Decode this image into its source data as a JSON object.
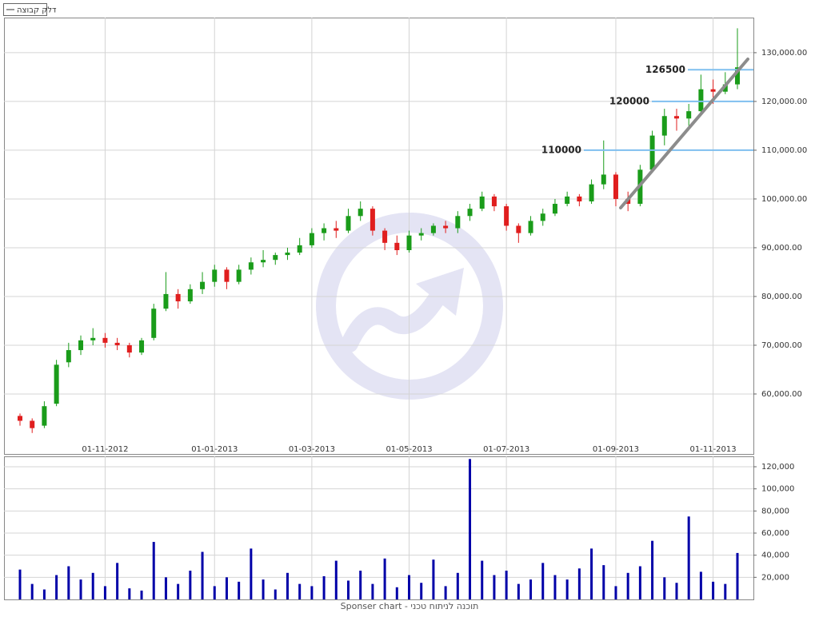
{
  "chart_data": [
    {
      "type": "candlestick",
      "series_name": "דלק קבוצה",
      "categories": [
        null,
        null,
        null,
        null,
        null,
        null,
        null,
        "01-11-2012",
        null,
        null,
        null,
        null,
        null,
        null,
        null,
        null,
        "01-01-2013",
        null,
        null,
        null,
        null,
        null,
        null,
        null,
        "01-03-2013",
        null,
        null,
        null,
        null,
        null,
        null,
        null,
        "01-05-2013",
        null,
        null,
        null,
        null,
        null,
        null,
        null,
        "01-07-2013",
        null,
        null,
        null,
        null,
        null,
        null,
        null,
        null,
        "01-09-2013",
        null,
        null,
        null,
        null,
        null,
        null,
        null,
        "01-11-2013",
        null,
        null
      ],
      "open": [
        55500,
        54500,
        53500,
        58000,
        66500,
        69000,
        71000,
        71500,
        70500,
        70000,
        68500,
        71500,
        77500,
        80500,
        79000,
        81500,
        83000,
        85500,
        83000,
        85500,
        87000,
        87500,
        88500,
        89000,
        90500,
        93000,
        94000,
        93500,
        96500,
        98000,
        93500,
        91000,
        89500,
        92500,
        93000,
        94500,
        94000,
        96500,
        98000,
        100500,
        98500,
        94500,
        93000,
        95500,
        97000,
        99000,
        100500,
        99500,
        103000,
        105000,
        100000,
        99000,
        106000,
        113000,
        117000,
        116500,
        118000,
        122500,
        122000,
        123500
      ],
      "high": [
        56000,
        55000,
        58500,
        67000,
        70500,
        72000,
        73500,
        72500,
        71500,
        70500,
        71500,
        78500,
        85000,
        81500,
        82500,
        85000,
        86500,
        86000,
        86500,
        88000,
        89500,
        89000,
        90000,
        92000,
        94000,
        95000,
        95500,
        98000,
        99500,
        98500,
        94000,
        92500,
        93500,
        94000,
        95000,
        95500,
        97500,
        99000,
        101500,
        101000,
        99000,
        95000,
        96500,
        98000,
        100000,
        101500,
        101000,
        104000,
        112000,
        105500,
        101500,
        107000,
        114000,
        118500,
        118500,
        119500,
        125500,
        124500,
        126000,
        135000
      ],
      "low": [
        53500,
        52000,
        53000,
        57500,
        65500,
        68000,
        70000,
        69500,
        69000,
        67500,
        68000,
        71000,
        77000,
        77500,
        78500,
        80500,
        82000,
        81500,
        82500,
        84500,
        86000,
        86500,
        87500,
        88500,
        90000,
        91500,
        92000,
        93000,
        95500,
        92500,
        89500,
        88500,
        89000,
        91500,
        92500,
        93000,
        93000,
        95500,
        97500,
        97500,
        93500,
        91000,
        92500,
        94500,
        96500,
        98500,
        98500,
        99000,
        102000,
        98500,
        97500,
        98500,
        105500,
        111000,
        114000,
        115000,
        117500,
        119500,
        121500,
        122500
      ],
      "close": [
        54500,
        53000,
        57500,
        66000,
        69000,
        71000,
        71500,
        70500,
        70000,
        68500,
        71000,
        77500,
        80500,
        79000,
        81500,
        83000,
        85500,
        83000,
        85500,
        87000,
        87500,
        88500,
        89000,
        90500,
        93000,
        94000,
        93500,
        96500,
        98000,
        93500,
        91000,
        89500,
        92500,
        93000,
        94500,
        94000,
        96500,
        98000,
        100500,
        98500,
        94500,
        93000,
        95500,
        97000,
        99000,
        100500,
        99500,
        103000,
        105000,
        100000,
        99000,
        106000,
        113000,
        117000,
        116500,
        118000,
        122500,
        122000,
        123500,
        127000
      ],
      "up_color": "#1a9c1a",
      "down_color": "#e01e1e",
      "ylim": [
        47700,
        137200
      ],
      "yticks": [
        {
          "value": 60000,
          "label": "60,000.00"
        },
        {
          "value": 70000,
          "label": "70,000.00"
        },
        {
          "value": 80000,
          "label": "80,000.00"
        },
        {
          "value": 90000,
          "label": "90,000.00"
        },
        {
          "value": 100000,
          "label": "100,000.00"
        },
        {
          "value": 110000,
          "label": "110,000.00"
        },
        {
          "value": 120000,
          "label": "120,000.00"
        },
        {
          "value": 130000,
          "label": "130,000.00"
        }
      ],
      "levels": [
        126500,
        120000,
        110000
      ],
      "level_color": "#7fbfef",
      "grid": true
    },
    {
      "type": "bar",
      "color": "#0000a8",
      "values": [
        27000,
        14000,
        9000,
        22000,
        30000,
        18000,
        24000,
        12000,
        33000,
        10000,
        8000,
        52000,
        20000,
        14000,
        26000,
        43000,
        12000,
        20000,
        16000,
        46000,
        18000,
        9000,
        24000,
        14000,
        12000,
        21000,
        35000,
        17000,
        26000,
        14000,
        37000,
        11000,
        22000,
        15000,
        36000,
        12000,
        24000,
        127000,
        35000,
        22000,
        26000,
        14000,
        18000,
        33000,
        22000,
        18000,
        28000,
        46000,
        31000,
        12000,
        24000,
        30000,
        53000,
        20000,
        15000,
        75000,
        25000,
        16000,
        14000,
        42000
      ],
      "ylim": [
        0,
        129400
      ],
      "yticks": [
        {
          "value": 20000,
          "label": "20,000"
        },
        {
          "value": 40000,
          "label": "40,000"
        },
        {
          "value": 60000,
          "label": "60,000"
        },
        {
          "value": 80000,
          "label": "80,000"
        },
        {
          "value": 100000,
          "label": "100,000"
        },
        {
          "value": 120000,
          "label": "120,000"
        }
      ],
      "grid": true
    }
  ],
  "footer": "Sponser chart - תוכנה לניתוח טכני"
}
